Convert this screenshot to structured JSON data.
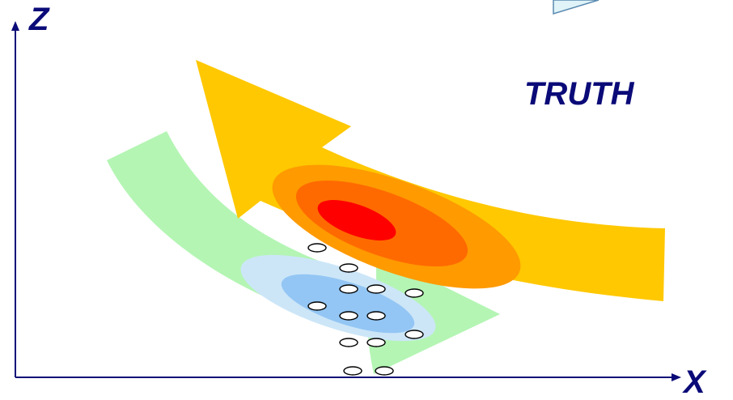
{
  "axes": {
    "y_label": "Z",
    "x_label": "X"
  },
  "annotation": {
    "text": "TRUTH"
  },
  "colors": {
    "axis": "#0a0a78",
    "label": "#0a0a78",
    "truth_arrow": "#ffc800",
    "truth_halo": "#ff9a00",
    "truth_mid": "#ff6a00",
    "truth_core": "#ff0000",
    "model_arrow": "#b4f5b4",
    "model_halo": "#cce6f8",
    "model_core": "#93c6f4",
    "sample_fill": "#ffffff",
    "sample_stroke": "#000000",
    "corner_box_fill": "#dff3f8",
    "corner_box_stroke": "#5a8ab0"
  }
}
